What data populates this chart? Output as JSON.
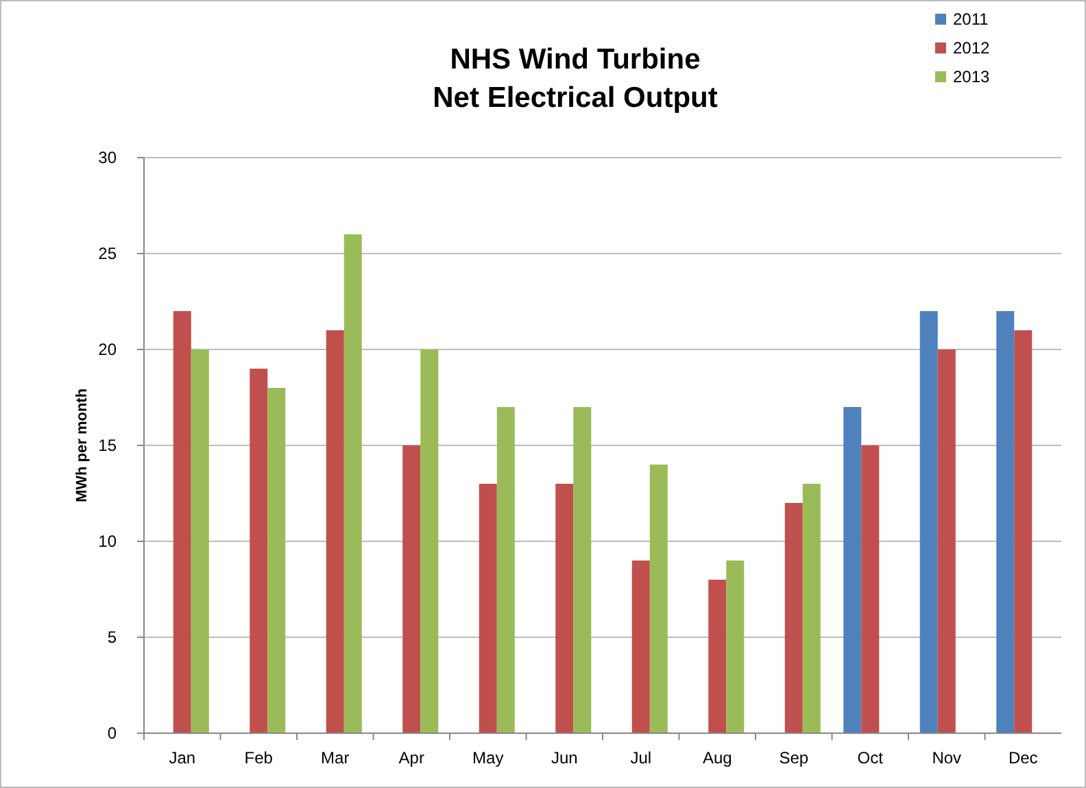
{
  "chart_data": {
    "type": "bar",
    "title": "NHS Wind Turbine\nNet Electrical Output",
    "ylabel": "MWh per month",
    "categories": [
      "Jan",
      "Feb",
      "Mar",
      "Apr",
      "May",
      "Jun",
      "Jul",
      "Aug",
      "Sep",
      "Oct",
      "Nov",
      "Dec"
    ],
    "series": [
      {
        "name": "2011",
        "color": "#4f81bd",
        "values": [
          null,
          null,
          null,
          null,
          null,
          null,
          null,
          null,
          null,
          17,
          22,
          22
        ]
      },
      {
        "name": "2012",
        "color": "#c0504d",
        "values": [
          22,
          19,
          21,
          15,
          13,
          13,
          9,
          8,
          12,
          15,
          20,
          21
        ]
      },
      {
        "name": "2013",
        "color": "#9bbb59",
        "values": [
          20,
          18,
          26,
          20,
          17,
          17,
          14,
          9,
          13,
          null,
          null,
          null
        ]
      }
    ],
    "ylim": [
      0,
      30
    ],
    "yticks": [
      0,
      5,
      10,
      15,
      20,
      25,
      30
    ],
    "grid": "y",
    "legend": "top right"
  }
}
